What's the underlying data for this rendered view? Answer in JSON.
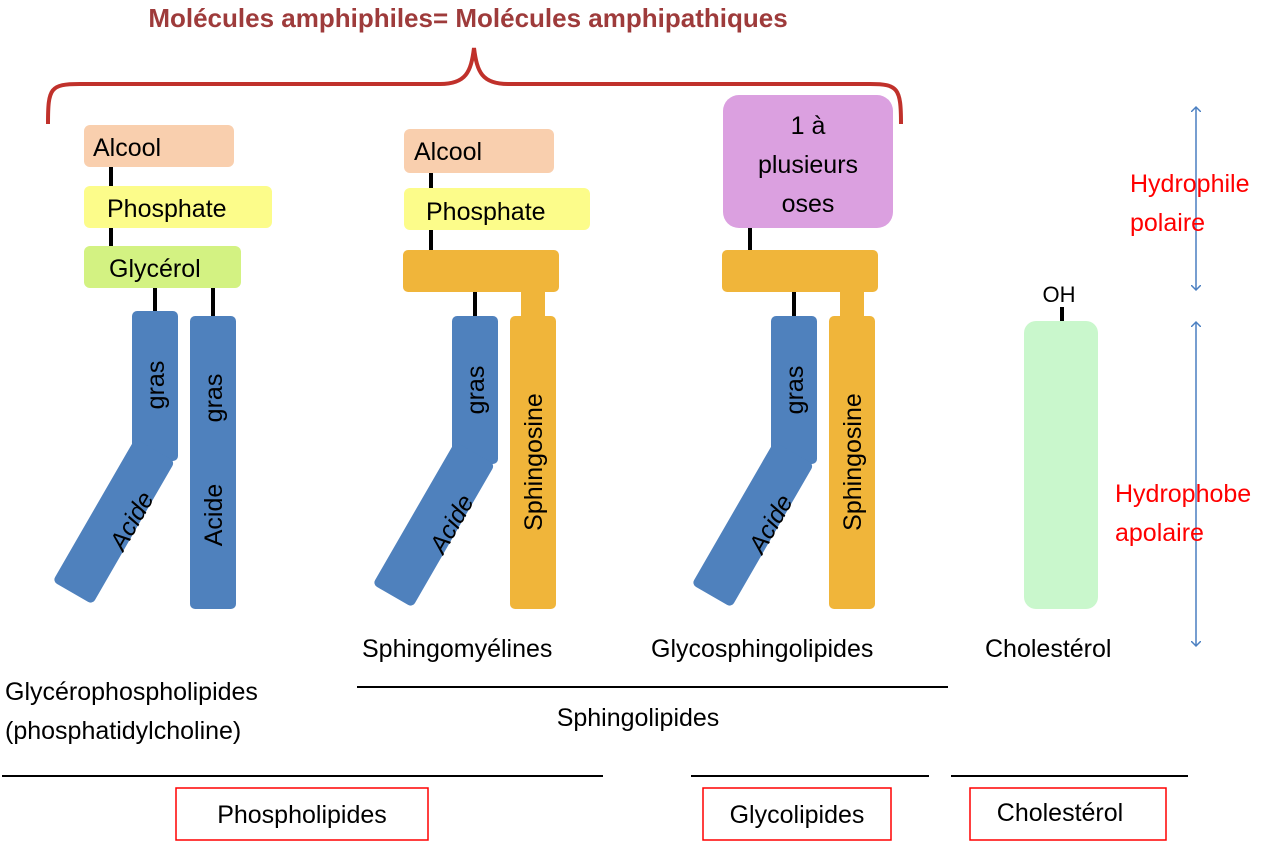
{
  "title": "Molécules amphiphiles= Molécules amphipathiques",
  "colors": {
    "title": "#9e3b3b",
    "alcool": "#f9cfae",
    "phosphate": "#fcfc8a",
    "glycerol": "#d3f282",
    "fatty_acid": "#4f81bd",
    "sphingosine": "#f0b53a",
    "oses": "#dba0e0",
    "cholesterol": "#c9f7cc",
    "axis_arrow": "#4a7fc1",
    "region_label": "#ff0000",
    "box_border": "#ff0000"
  },
  "phospholipid_blocks": {
    "alcool": "Alcool",
    "phosphate": "Phosphate",
    "glycerol": "Glycérol"
  },
  "tail_labels": {
    "acide": "Acide",
    "gras": "gras",
    "sphingosine": "Sphingosine"
  },
  "oses_label": [
    "1 à",
    "plusieurs",
    "oses"
  ],
  "cholesterol_oh": "OH",
  "molecule_names": {
    "glycerophospholipides": "Glycérophospholipides",
    "glycerophospholipides_sub": "(phosphatidylcholine)",
    "sphingomyelines": "Sphingomyélines",
    "glycosphingolipides": "Glycosphingolipides",
    "cholesterol": "Cholestérol"
  },
  "group_label": "Sphingolipides",
  "categories": {
    "phospholipides": "Phospholipides",
    "glycolipides": "Glycolipides",
    "cholesterol": "Cholestérol"
  },
  "regions": {
    "hydrophile": "Hydrophile",
    "polaire": "polaire",
    "hydrophobe": "Hydrophobe",
    "apolaire": "apolaire"
  }
}
